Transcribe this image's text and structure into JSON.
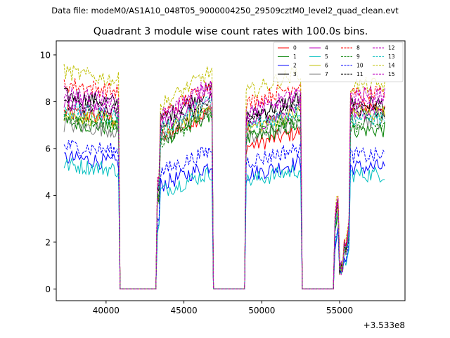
{
  "suptitle": "Data file: modeM0/AS1A10_048T05_9000004250_29509cztM0_level2_quad_clean.evt",
  "chart_data": {
    "type": "line",
    "title": "Quadrant 3 module wise count rates with 100.0s bins.",
    "xlabel": "",
    "ylabel": "",
    "offset_text": "+3.533e8",
    "xlim": [
      36800,
      59200
    ],
    "ylim": [
      -0.5,
      10.6
    ],
    "xticks": [
      40000,
      45000,
      50000,
      55000
    ],
    "xtick_labels": [
      "40000",
      "45000",
      "50000",
      "55000"
    ],
    "yticks": [
      0,
      2,
      4,
      6,
      8,
      10
    ],
    "ytick_labels": [
      "0",
      "2",
      "4",
      "6",
      "8",
      "10"
    ],
    "legend_position": "top-right",
    "legend_columns": 4,
    "segments": [
      {
        "start": 37300,
        "end": 40800
      },
      {
        "start": 43300,
        "end": 46800
      },
      {
        "start": 49000,
        "end": 52500
      },
      {
        "start": 55700,
        "end": 57900
      }
    ],
    "series": [
      {
        "name": "0",
        "color": "#ff0000",
        "dash": "solid",
        "levels": [
          7.4,
          7.2,
          6.6,
          7.8
        ]
      },
      {
        "name": "1",
        "color": "#008000",
        "dash": "solid",
        "levels": [
          7.0,
          7.1,
          6.9,
          6.8
        ]
      },
      {
        "name": "2",
        "color": "#0000ff",
        "dash": "solid",
        "levels": [
          5.5,
          5.0,
          5.3,
          5.2
        ]
      },
      {
        "name": "3",
        "color": "#000000",
        "dash": "solid",
        "levels": [
          8.1,
          8.1,
          8.0,
          7.9
        ]
      },
      {
        "name": "4",
        "color": "#bf00bf",
        "dash": "solid",
        "levels": [
          7.6,
          7.8,
          7.5,
          7.6
        ]
      },
      {
        "name": "5",
        "color": "#00bfbf",
        "dash": "solid",
        "levels": [
          5.2,
          4.7,
          5.0,
          4.9
        ]
      },
      {
        "name": "6",
        "color": "#bfbf00",
        "dash": "solid",
        "levels": [
          7.3,
          7.4,
          7.4,
          7.5
        ]
      },
      {
        "name": "7",
        "color": "#808080",
        "dash": "solid",
        "levels": [
          6.9,
          7.2,
          7.0,
          7.2
        ]
      },
      {
        "name": "8",
        "color": "#ff0000",
        "dash": "dashed",
        "levels": [
          8.6,
          8.3,
          8.6,
          8.3
        ]
      },
      {
        "name": "9",
        "color": "#008000",
        "dash": "dashed",
        "levels": [
          7.2,
          7.1,
          7.1,
          7.0
        ]
      },
      {
        "name": "10",
        "color": "#0000ff",
        "dash": "dashed",
        "levels": [
          6.0,
          5.6,
          5.9,
          5.7
        ]
      },
      {
        "name": "11",
        "color": "#000000",
        "dash": "dashed",
        "levels": [
          7.8,
          7.7,
          7.7,
          7.6
        ]
      },
      {
        "name": "12",
        "color": "#bf00bf",
        "dash": "dashed",
        "levels": [
          8.0,
          8.2,
          8.1,
          8.0
        ]
      },
      {
        "name": "13",
        "color": "#00bfbf",
        "dash": "dashed",
        "levels": [
          7.5,
          7.6,
          7.5,
          7.3
        ]
      },
      {
        "name": "14",
        "color": "#bfbf00",
        "dash": "dashed",
        "levels": [
          9.1,
          8.8,
          9.1,
          8.7
        ]
      },
      {
        "name": "15",
        "color": "#bf00bf",
        "dash": "dashed",
        "levels": [
          8.2,
          8.3,
          8.2,
          8.3
        ]
      }
    ]
  }
}
